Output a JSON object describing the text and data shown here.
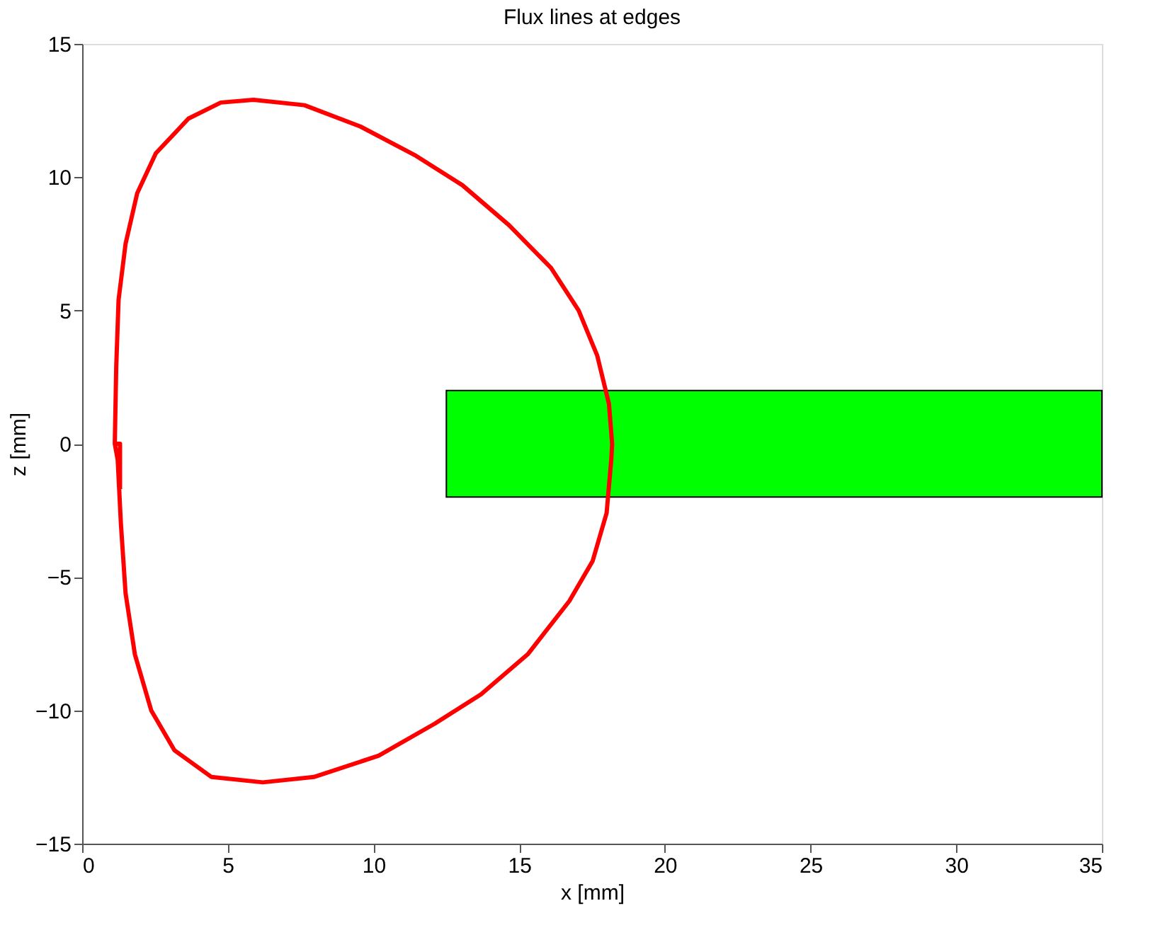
{
  "chart_data": {
    "type": "line",
    "title": "Flux lines at edges",
    "xlabel": "x [mm]",
    "ylabel": "z [mm]",
    "xlim": [
      0,
      35
    ],
    "ylim": [
      -15,
      15
    ],
    "xticks": [
      0,
      5,
      10,
      15,
      20,
      25,
      30,
      35
    ],
    "yticks": [
      -15,
      -10,
      -5,
      0,
      5,
      10,
      15
    ],
    "grid": false,
    "series": [
      {
        "type": "area",
        "color": "#00ff00",
        "x": [
          12.5,
          35
        ],
        "values": [
          null,
          null
        ],
        "upper": [
          2,
          2
        ],
        "lower": [
          -2,
          -2
        ]
      },
      {
        "color": "#ff0000",
        "x": [
          1.3,
          1.3,
          1.12,
          1.17,
          1.25,
          1.49,
          1.89,
          2.53,
          3.65,
          4.76,
          5.88,
          7.63,
          9.55,
          11.46,
          13.05,
          14.65,
          16.09,
          17.04,
          17.68,
          18.08,
          18.19,
          18.16,
          18.0,
          17.52,
          16.72,
          15.29,
          13.69,
          12.1,
          10.18,
          7.95,
          6.2,
          4.44,
          3.17,
          2.37,
          1.81,
          1.49,
          1.33,
          1.22,
          1.12
        ],
        "values": [
          -1.7,
          0,
          0,
          2.9,
          5.4,
          7.5,
          9.4,
          10.9,
          12.2,
          12.8,
          12.9,
          12.7,
          11.9,
          10.8,
          9.7,
          8.2,
          6.6,
          5.0,
          3.3,
          1.5,
          0,
          -0.6,
          -2.6,
          -4.4,
          -5.9,
          -7.9,
          -9.4,
          -10.5,
          -11.7,
          -12.5,
          -12.7,
          -12.5,
          -11.5,
          -10.0,
          -7.9,
          -5.6,
          -3.0,
          -0.6,
          0
        ]
      }
    ]
  }
}
